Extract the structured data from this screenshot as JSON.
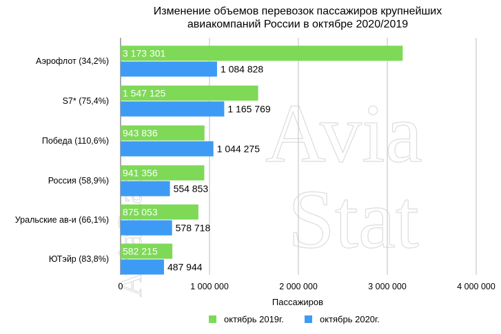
{
  "watermark": {
    "side_text": "AviaStat",
    "big_line1": "Avia",
    "big_line2": "Stat"
  },
  "chart_data": {
    "type": "bar",
    "orientation": "horizontal",
    "title_lines": [
      "Изменение объемов перевозок пассажиров крупнейших",
      "авиакомпаний России в октябре 2020/2019"
    ],
    "xlabel": "Пассажиров",
    "ylabel": "",
    "xlim": [
      0,
      4000000
    ],
    "x_ticks": [
      0,
      1000000,
      2000000,
      3000000,
      4000000
    ],
    "x_tick_labels": [
      "0",
      "1 000 000",
      "2 000 000",
      "3 000 000",
      "4 000 000"
    ],
    "grid": "vertical",
    "legend_position": "bottom",
    "categories": [
      "Аэрофлот (34,2%)",
      "S7* (75,4%)",
      "Победа (110,6%)",
      "Россия (58,9%)",
      "Уральские ав-и (66,1%)",
      "ЮТэйр (83,8%)"
    ],
    "series": [
      {
        "name": "октябрь 2019г.",
        "color": "#7ed957",
        "values": [
          3173301,
          1547125,
          943836,
          941356,
          875053,
          582215
        ],
        "labels": [
          "3 173 301",
          "1 547 125",
          "943 836",
          "941 356",
          "875 053",
          "582 215"
        ]
      },
      {
        "name": "октябрь 2020г.",
        "color": "#3d9bf5",
        "values": [
          1084828,
          1165769,
          1044275,
          554853,
          578718,
          487944
        ],
        "labels": [
          "1 084 828",
          "1 165 769",
          "1 044 275",
          "554 853",
          "578 718",
          "487 944"
        ]
      }
    ]
  }
}
